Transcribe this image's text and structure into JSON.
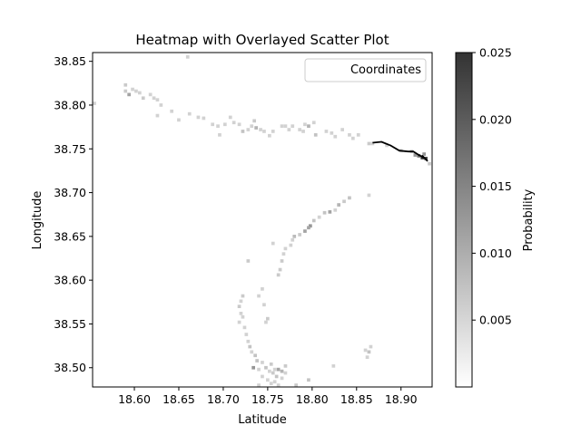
{
  "chart_data": {
    "type": "heatmap",
    "title": "Heatmap with Overlayed Scatter Plot",
    "xlabel": "Latitude",
    "ylabel": "Longitude",
    "xlim": [
      18.553,
      18.935
    ],
    "ylim": [
      38.478,
      38.86
    ],
    "x_ticks": [
      18.6,
      18.65,
      18.7,
      18.75,
      18.8,
      18.85,
      18.9
    ],
    "y_ticks": [
      38.5,
      38.55,
      38.6,
      38.65,
      38.7,
      38.75,
      38.8,
      38.85
    ],
    "x_tick_labels": [
      "18.60",
      "18.65",
      "18.70",
      "18.75",
      "18.80",
      "18.85",
      "18.90"
    ],
    "y_tick_labels": [
      "38.50",
      "38.55",
      "38.60",
      "38.65",
      "38.70",
      "38.75",
      "38.80",
      "38.85"
    ],
    "legend": {
      "label": "Coordinates",
      "position": "top-right"
    },
    "colorbar": {
      "label": "Probability",
      "range": [
        0.0,
        0.025
      ],
      "ticks": [
        0.005,
        0.01,
        0.015,
        0.02,
        0.025
      ],
      "tick_labels": [
        "0.005",
        "0.010",
        "0.015",
        "0.020",
        "0.025"
      ],
      "colormap": "Greys",
      "low_color": "#ffffff",
      "high_color": "#333333"
    },
    "cell_size": [
      0.0038,
      0.0038
    ],
    "heat_cells": [
      [
        18.555,
        38.802,
        0.004
      ],
      [
        18.59,
        38.823,
        0.005
      ],
      [
        18.59,
        38.816,
        0.005
      ],
      [
        18.594,
        38.812,
        0.01
      ],
      [
        18.598,
        38.818,
        0.004
      ],
      [
        18.602,
        38.816,
        0.004
      ],
      [
        18.606,
        38.814,
        0.004
      ],
      [
        18.61,
        38.808,
        0.005
      ],
      [
        18.618,
        38.812,
        0.004
      ],
      [
        18.622,
        38.808,
        0.004
      ],
      [
        18.626,
        38.806,
        0.004
      ],
      [
        18.63,
        38.8,
        0.004
      ],
      [
        18.626,
        38.788,
        0.004
      ],
      [
        18.642,
        38.793,
        0.004
      ],
      [
        18.65,
        38.783,
        0.004
      ],
      [
        18.662,
        38.79,
        0.004
      ],
      [
        18.66,
        38.855,
        0.004
      ],
      [
        18.672,
        38.786,
        0.004
      ],
      [
        18.678,
        38.785,
        0.004
      ],
      [
        18.688,
        38.778,
        0.004
      ],
      [
        18.694,
        38.776,
        0.004
      ],
      [
        18.696,
        38.766,
        0.004
      ],
      [
        18.702,
        38.778,
        0.004
      ],
      [
        18.708,
        38.786,
        0.004
      ],
      [
        18.712,
        38.78,
        0.004
      ],
      [
        18.718,
        38.778,
        0.004
      ],
      [
        18.722,
        38.77,
        0.006
      ],
      [
        18.728,
        38.772,
        0.004
      ],
      [
        18.732,
        38.776,
        0.004
      ],
      [
        18.735,
        38.782,
        0.005
      ],
      [
        18.737,
        38.774,
        0.008
      ],
      [
        18.742,
        38.772,
        0.004
      ],
      [
        18.746,
        38.77,
        0.004
      ],
      [
        18.752,
        38.765,
        0.004
      ],
      [
        18.756,
        38.77,
        0.004
      ],
      [
        18.766,
        38.776,
        0.004
      ],
      [
        18.77,
        38.776,
        0.004
      ],
      [
        18.774,
        38.772,
        0.004
      ],
      [
        18.778,
        38.776,
        0.004
      ],
      [
        18.786,
        38.772,
        0.004
      ],
      [
        18.79,
        38.77,
        0.004
      ],
      [
        18.792,
        38.778,
        0.004
      ],
      [
        18.796,
        38.776,
        0.008
      ],
      [
        18.802,
        38.78,
        0.004
      ],
      [
        18.804,
        38.766,
        0.006
      ],
      [
        18.816,
        38.77,
        0.004
      ],
      [
        18.822,
        38.768,
        0.004
      ],
      [
        18.826,
        38.764,
        0.004
      ],
      [
        18.834,
        38.772,
        0.004
      ],
      [
        18.842,
        38.766,
        0.004
      ],
      [
        18.846,
        38.762,
        0.004
      ],
      [
        18.852,
        38.766,
        0.004
      ],
      [
        18.864,
        38.756,
        0.005
      ],
      [
        18.868,
        38.756,
        0.004
      ],
      [
        18.884,
        38.754,
        0.004
      ],
      [
        18.9,
        38.748,
        0.004
      ],
      [
        18.912,
        38.747,
        0.006
      ],
      [
        18.916,
        38.743,
        0.012
      ],
      [
        18.92,
        38.742,
        0.018
      ],
      [
        18.924,
        38.74,
        0.025
      ],
      [
        18.928,
        38.739,
        0.022
      ],
      [
        18.926,
        38.744,
        0.012
      ],
      [
        18.932,
        38.733,
        0.005
      ],
      [
        18.864,
        38.697,
        0.004
      ],
      [
        18.842,
        38.694,
        0.006
      ],
      [
        18.836,
        38.69,
        0.005
      ],
      [
        18.83,
        38.686,
        0.008
      ],
      [
        18.826,
        38.68,
        0.004
      ],
      [
        18.82,
        38.678,
        0.01
      ],
      [
        18.814,
        38.677,
        0.006
      ],
      [
        18.808,
        38.672,
        0.004
      ],
      [
        18.802,
        38.668,
        0.006
      ],
      [
        18.798,
        38.662,
        0.012
      ],
      [
        18.796,
        38.66,
        0.01
      ],
      [
        18.792,
        38.656,
        0.01
      ],
      [
        18.786,
        38.652,
        0.005
      ],
      [
        18.78,
        38.65,
        0.007
      ],
      [
        18.778,
        38.646,
        0.004
      ],
      [
        18.776,
        38.64,
        0.004
      ],
      [
        18.77,
        38.636,
        0.004
      ],
      [
        18.768,
        38.63,
        0.004
      ],
      [
        18.766,
        38.622,
        0.005
      ],
      [
        18.764,
        38.612,
        0.005
      ],
      [
        18.762,
        38.606,
        0.005
      ],
      [
        18.756,
        38.642,
        0.004
      ],
      [
        18.728,
        38.622,
        0.005
      ],
      [
        18.744,
        38.59,
        0.004
      ],
      [
        18.74,
        38.582,
        0.004
      ],
      [
        18.746,
        38.572,
        0.004
      ],
      [
        18.722,
        38.582,
        0.005
      ],
      [
        18.72,
        38.576,
        0.004
      ],
      [
        18.718,
        38.57,
        0.005
      ],
      [
        18.72,
        38.562,
        0.004
      ],
      [
        18.722,
        38.558,
        0.004
      ],
      [
        18.718,
        38.552,
        0.004
      ],
      [
        18.724,
        38.546,
        0.004
      ],
      [
        18.726,
        38.538,
        0.004
      ],
      [
        18.728,
        38.53,
        0.004
      ],
      [
        18.73,
        38.524,
        0.006
      ],
      [
        18.732,
        38.518,
        0.004
      ],
      [
        18.736,
        38.514,
        0.006
      ],
      [
        18.738,
        38.508,
        0.006
      ],
      [
        18.734,
        38.5,
        0.012
      ],
      [
        18.74,
        38.498,
        0.004
      ],
      [
        18.744,
        38.506,
        0.004
      ],
      [
        18.748,
        38.5,
        0.006
      ],
      [
        18.752,
        38.496,
        0.004
      ],
      [
        18.754,
        38.504,
        0.005
      ],
      [
        18.758,
        38.498,
        0.004
      ],
      [
        18.756,
        38.494,
        0.005
      ],
      [
        18.76,
        38.49,
        0.006
      ],
      [
        18.762,
        38.498,
        0.01
      ],
      [
        18.766,
        38.496,
        0.008
      ],
      [
        18.75,
        38.486,
        0.004
      ],
      [
        18.754,
        38.482,
        0.004
      ],
      [
        18.758,
        38.484,
        0.004
      ],
      [
        18.762,
        38.48,
        0.004
      ],
      [
        18.766,
        38.488,
        0.004
      ],
      [
        18.77,
        38.502,
        0.005
      ],
      [
        18.77,
        38.494,
        0.004
      ],
      [
        18.74,
        38.48,
        0.004
      ],
      [
        18.744,
        38.49,
        0.004
      ],
      [
        18.748,
        38.552,
        0.004
      ],
      [
        18.75,
        38.556,
        0.005
      ],
      [
        18.782,
        38.48,
        0.005
      ],
      [
        18.796,
        38.486,
        0.006
      ],
      [
        18.824,
        38.502,
        0.004
      ],
      [
        18.86,
        38.52,
        0.004
      ],
      [
        18.864,
        38.518,
        0.006
      ],
      [
        18.866,
        38.524,
        0.004
      ],
      [
        18.862,
        38.512,
        0.004
      ]
    ],
    "series": [
      {
        "type": "line",
        "color": "#000000",
        "x": [
          18.868,
          18.878,
          18.888,
          18.898,
          18.908,
          18.914,
          18.92,
          18.924,
          18.926,
          18.928,
          18.924,
          18.93
        ],
        "y": [
          38.757,
          38.758,
          38.754,
          38.748,
          38.747,
          38.747,
          38.743,
          38.741,
          38.74,
          38.738,
          38.742,
          38.736
        ]
      }
    ]
  }
}
